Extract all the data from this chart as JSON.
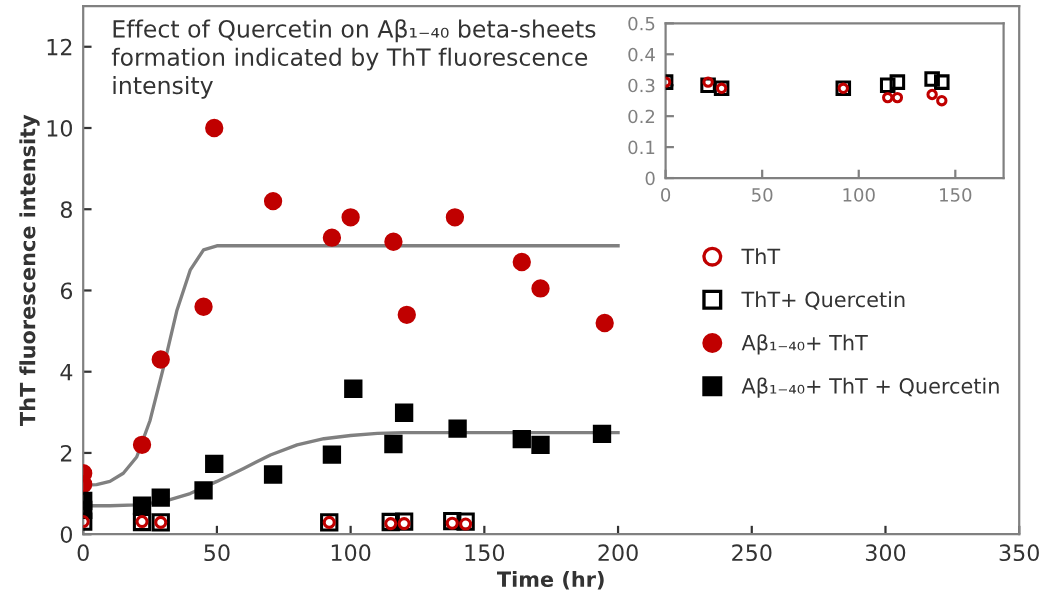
{
  "chart_data": [
    {
      "type": "scatter",
      "title": "Effect of Quercetin on Aβ₁₋₄₀ beta-sheets\nformation indicated by ThT fluorescence\nintensity",
      "xlabel": "Time (hr)",
      "ylabel": "ThT fluorescence intensity",
      "xlim": [
        0,
        350
      ],
      "xticks": [
        0,
        50,
        100,
        150,
        200,
        250,
        300,
        350
      ],
      "ylim": [
        0,
        13
      ],
      "yticks": [
        0,
        2,
        4,
        6,
        8,
        10,
        12
      ],
      "grid": false,
      "legend": "right",
      "series": [
        {
          "name": "ThT",
          "color": "#c00000",
          "marker": "circle",
          "x": [
            0,
            22,
            29,
            92,
            115,
            120,
            138,
            143
          ],
          "values": [
            0.31,
            0.31,
            0.29,
            0.29,
            0.26,
            0.26,
            0.27,
            0.25
          ]
        },
        {
          "name": "ThT+ Quercetin",
          "color": "#000000",
          "marker": "square",
          "x": [
            0,
            22,
            29,
            92,
            115,
            120,
            138,
            143
          ],
          "values": [
            0.31,
            0.3,
            0.29,
            0.29,
            0.3,
            0.31,
            0.32,
            0.31
          ]
        },
        {
          "name": "Aβ₁₋₄₀+ ThT",
          "color": "#c00000",
          "marker": "circle",
          "x": [
            0,
            0,
            22,
            29,
            45,
            49,
            71,
            93,
            100,
            116,
            121,
            139,
            164,
            171,
            195
          ],
          "values": [
            1.23,
            1.5,
            2.2,
            4.3,
            5.6,
            10.0,
            8.2,
            7.3,
            7.8,
            7.2,
            5.4,
            7.8,
            6.7,
            6.05,
            5.2
          ]
        },
        {
          "name": "Aβ₁₋₄₀+ ThT + Quercetin",
          "color": "#000000",
          "marker": "square",
          "x": [
            0,
            0,
            22,
            29,
            45,
            49,
            71,
            93,
            101,
            116,
            120,
            140,
            164,
            171,
            194
          ],
          "values": [
            0.6,
            0.82,
            0.7,
            0.9,
            1.08,
            1.73,
            1.47,
            1.96,
            3.58,
            2.22,
            2.99,
            2.6,
            2.34,
            2.2,
            2.47
          ]
        },
        {
          "type": "line",
          "color": "#808080",
          "marker": "none",
          "x": [
            0,
            5,
            10,
            15,
            20,
            25,
            30,
            35,
            40,
            45,
            50,
            60,
            80,
            120,
            200
          ],
          "values": [
            1.2,
            1.22,
            1.3,
            1.5,
            1.9,
            2.8,
            4.1,
            5.5,
            6.5,
            7.0,
            7.1,
            7.1,
            7.1,
            7.1,
            7.1
          ]
        },
        {
          "type": "line",
          "color": "#808080",
          "marker": "none",
          "x": [
            0,
            10,
            20,
            30,
            40,
            50,
            60,
            70,
            80,
            90,
            100,
            110,
            120,
            200
          ],
          "values": [
            0.7,
            0.7,
            0.72,
            0.8,
            1.0,
            1.3,
            1.62,
            1.95,
            2.2,
            2.35,
            2.43,
            2.48,
            2.5,
            2.5
          ]
        }
      ]
    },
    {
      "type": "scatter",
      "xlim": [
        0,
        175
      ],
      "xticks": [
        0,
        50,
        100,
        150
      ],
      "ylim": [
        0,
        0.5
      ],
      "yticks": [
        0,
        0.1,
        0.2,
        0.3,
        0.4,
        0.5
      ],
      "grid": false,
      "series": [
        {
          "color": "#c00000",
          "marker": "circle",
          "x": [
            0,
            22,
            29,
            92,
            115,
            120,
            138,
            143
          ],
          "values": [
            0.31,
            0.31,
            0.29,
            0.29,
            0.26,
            0.26,
            0.27,
            0.25
          ]
        },
        {
          "color": "#000000",
          "marker": "square",
          "x": [
            0,
            22,
            29,
            92,
            115,
            120,
            138,
            143
          ],
          "values": [
            0.31,
            0.3,
            0.29,
            0.29,
            0.3,
            0.31,
            0.32,
            0.31
          ]
        }
      ]
    }
  ]
}
